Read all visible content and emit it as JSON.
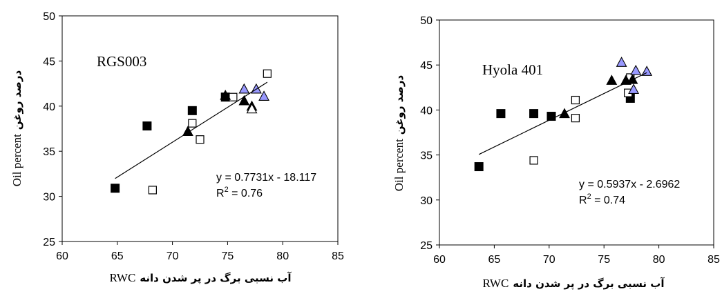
{
  "chart_data": [
    {
      "type": "scatter",
      "panel_label": "RGS003",
      "xlabel": {
        "fa": "آب نسبی برگ در پر شدن دانه",
        "en": "RWC"
      },
      "ylabel": {
        "fa": "درصد روغن",
        "en": "Oil percent"
      },
      "xlim": [
        60,
        85
      ],
      "ylim": [
        25,
        50
      ],
      "xticks": [
        "60",
        "65",
        "70",
        "75",
        "80",
        "85"
      ],
      "yticks": [
        "25",
        "30",
        "35",
        "40",
        "45",
        "50"
      ],
      "grid": false,
      "series": [
        {
          "marker": "filled-square",
          "color": "#000000",
          "points": [
            [
              64.8,
              30.9
            ],
            [
              67.7,
              37.8
            ],
            [
              71.8,
              39.5
            ],
            [
              74.8,
              41.0
            ]
          ]
        },
        {
          "marker": "open-square",
          "color": "#000000",
          "points": [
            [
              68.2,
              30.7
            ],
            [
              71.8,
              38.1
            ],
            [
              72.5,
              36.3
            ],
            [
              75.5,
              41.0
            ],
            [
              78.6,
              43.6
            ]
          ]
        },
        {
          "marker": "filled-triangle",
          "color": "#000000",
          "points": [
            [
              71.4,
              37.2
            ],
            [
              74.8,
              41.2
            ],
            [
              76.5,
              40.6
            ],
            [
              77.2,
              40.0
            ]
          ]
        },
        {
          "marker": "open-triangle",
          "color": "#000000",
          "points": [
            [
              77.2,
              39.7
            ]
          ]
        },
        {
          "marker": "blue-triangle",
          "color": "#9999ff",
          "points": [
            [
              76.5,
              41.9
            ],
            [
              77.6,
              41.9
            ],
            [
              78.3,
              41.1
            ]
          ]
        }
      ],
      "trendline": {
        "slope": 0.7731,
        "intercept": -18.117,
        "x_range": [
          64.8,
          78.6
        ]
      },
      "equation": "y = 0.7731x - 18.117",
      "r2_prefix": "R",
      "r2_sup": "2",
      "r2_value": " = 0.76"
    },
    {
      "type": "scatter",
      "panel_label": "Hyola 401",
      "xlabel": {
        "fa": "آب نسبی برگ در پر شدن دانه",
        "en": "RWC"
      },
      "ylabel": {
        "fa": "درصد روغن",
        "en": "Oil percent"
      },
      "xlim": [
        60,
        85
      ],
      "ylim": [
        25,
        50
      ],
      "xticks": [
        "60",
        "65",
        "70",
        "75",
        "80",
        "85"
      ],
      "yticks": [
        "25",
        "30",
        "35",
        "40",
        "45",
        "50"
      ],
      "grid": false,
      "series": [
        {
          "marker": "filled-square",
          "color": "#000000",
          "points": [
            [
              63.6,
              33.7
            ],
            [
              65.6,
              39.6
            ],
            [
              68.6,
              39.6
            ],
            [
              70.2,
              39.3
            ],
            [
              77.4,
              41.3
            ]
          ]
        },
        {
          "marker": "open-square",
          "color": "#000000",
          "points": [
            [
              68.6,
              34.4
            ],
            [
              72.4,
              41.1
            ],
            [
              72.4,
              39.1
            ],
            [
              77.2,
              41.9
            ],
            [
              77.4,
              43.6
            ]
          ]
        },
        {
          "marker": "filled-triangle",
          "color": "#000000",
          "points": [
            [
              71.4,
              39.6
            ],
            [
              75.7,
              43.3
            ],
            [
              77.0,
              43.3
            ],
            [
              77.6,
              43.4
            ]
          ]
        },
        {
          "marker": "blue-triangle",
          "color": "#9999ff",
          "points": [
            [
              76.6,
              45.3
            ],
            [
              77.7,
              42.3
            ],
            [
              77.9,
              44.4
            ],
            [
              78.9,
              44.3
            ]
          ]
        }
      ],
      "trendline": {
        "slope": 0.5937,
        "intercept": -2.6962,
        "x_range": [
          63.6,
          78.9
        ]
      },
      "equation": "y = 0.5937x - 2.6962",
      "r2_prefix": "R",
      "r2_sup": "2",
      "r2_value": " = 0.74"
    }
  ]
}
